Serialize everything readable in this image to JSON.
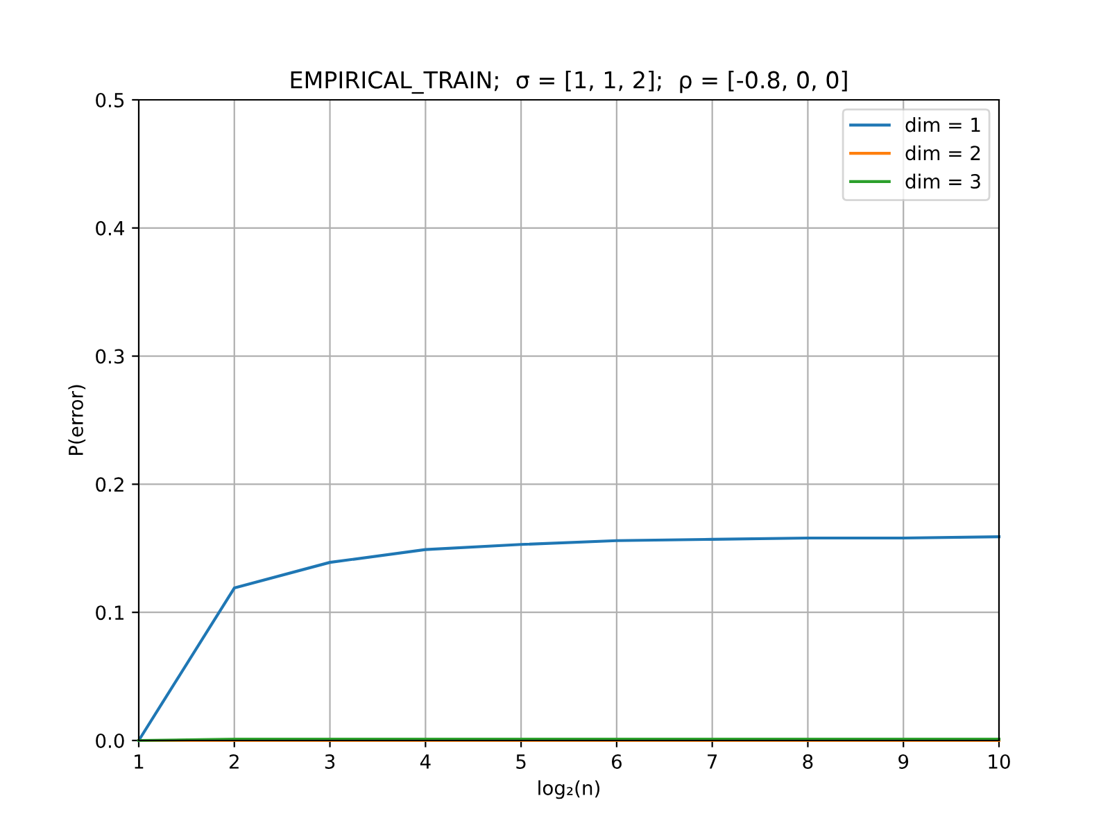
{
  "chart_data": {
    "type": "line",
    "title": "EMPIRICAL_TRAIN;  σ = [1, 1, 2];  ρ = [-0.8, 0, 0]",
    "xlabel": "log₂(n)",
    "ylabel": "P(error)",
    "x": [
      1,
      2,
      3,
      4,
      5,
      6,
      7,
      8,
      9,
      10
    ],
    "series": [
      {
        "name": "dim = 1",
        "color": "#1f77b4",
        "values": [
          0,
          0.119,
          0.139,
          0.149,
          0.153,
          0.156,
          0.157,
          0.158,
          0.158,
          0.159
        ]
      },
      {
        "name": "dim = 2",
        "color": "#ff7f0e",
        "values": [
          0,
          0,
          0,
          0,
          0,
          0,
          0,
          0,
          0,
          0
        ]
      },
      {
        "name": "dim = 3",
        "color": "#2ca02c",
        "values": [
          0,
          0.001,
          0.001,
          0.001,
          0.001,
          0.001,
          0.001,
          0.001,
          0.001,
          0.001
        ]
      }
    ],
    "xlim": [
      1,
      10
    ],
    "xticks": [
      1,
      2,
      3,
      4,
      5,
      6,
      7,
      8,
      9,
      10
    ],
    "ylim": [
      0,
      0.5
    ],
    "yticks": [
      {
        "value": 0,
        "label": "0.0"
      },
      0.1,
      0.2,
      0.3,
      0.4,
      0.5
    ],
    "grid": true,
    "legend": "top right",
    "marker": "none",
    "line_style": "solid"
  }
}
